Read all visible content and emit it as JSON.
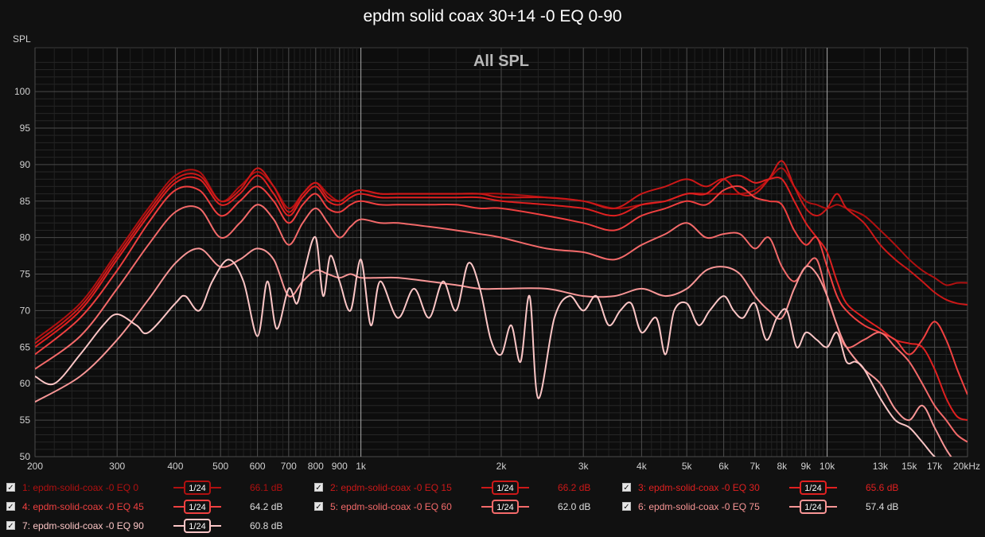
{
  "chart_data": {
    "type": "line",
    "title": "epdm solid coax 30+14 -0 EQ 0-90",
    "subtitle": "All SPL",
    "ylabel": "SPL",
    "xlabel": "",
    "x_scale": "log",
    "xlim": [
      200,
      20000
    ],
    "ylim": [
      50,
      106
    ],
    "x_ticks": [
      {
        "v": 200,
        "label": "200"
      },
      {
        "v": 300,
        "label": "300"
      },
      {
        "v": 400,
        "label": "400"
      },
      {
        "v": 500,
        "label": "500"
      },
      {
        "v": 600,
        "label": "600"
      },
      {
        "v": 700,
        "label": "700"
      },
      {
        "v": 800,
        "label": "800"
      },
      {
        "v": 900,
        "label": "900"
      },
      {
        "v": 1000,
        "label": "1k"
      },
      {
        "v": 2000,
        "label": "2k"
      },
      {
        "v": 3000,
        "label": "3k"
      },
      {
        "v": 4000,
        "label": "4k"
      },
      {
        "v": 5000,
        "label": "5k"
      },
      {
        "v": 6000,
        "label": "6k"
      },
      {
        "v": 7000,
        "label": "7k"
      },
      {
        "v": 8000,
        "label": "8k"
      },
      {
        "v": 9000,
        "label": "9k"
      },
      {
        "v": 10000,
        "label": "10k"
      },
      {
        "v": 13000,
        "label": "13k"
      },
      {
        "v": 15000,
        "label": "15k"
      },
      {
        "v": 17000,
        "label": "17k"
      },
      {
        "v": 20000,
        "label": "20kHz"
      }
    ],
    "y_ticks": [
      50,
      55,
      60,
      65,
      70,
      75,
      80,
      85,
      90,
      95,
      100
    ],
    "grid": true,
    "legend_position": "bottom",
    "series": [
      {
        "name": "1: epdm-solid-coax -0 EQ 0",
        "smoothing": "1/24",
        "value": "66.1 dB",
        "color": "#b01010",
        "x": [
          200,
          250,
          300,
          350,
          400,
          450,
          500,
          550,
          600,
          650,
          700,
          750,
          800,
          850,
          900,
          950,
          1000,
          1100,
          1200,
          1400,
          1600,
          1800,
          2000,
          2500,
          3000,
          3500,
          4000,
          4500,
          5000,
          5500,
          6000,
          6500,
          7000,
          7500,
          8000,
          8500,
          9000,
          9500,
          10000,
          10500,
          11000,
          12000,
          13000,
          14000,
          15000,
          16000,
          17000,
          18000,
          19000,
          20000
        ],
        "y": [
          66,
          71,
          78,
          84,
          88.5,
          89,
          85,
          87,
          89,
          87,
          84,
          86,
          87.5,
          86,
          85,
          86,
          86.5,
          86,
          86,
          86,
          86,
          86,
          86,
          85.5,
          85,
          84,
          84.5,
          85,
          86,
          86,
          86,
          86,
          86.5,
          88,
          89.5,
          87,
          85,
          84.5,
          84,
          84.5,
          84,
          83,
          81,
          79,
          77,
          75.5,
          74.5,
          73.5,
          73.8,
          73.8
        ]
      },
      {
        "name": "2: epdm-solid-coax -0 EQ 15",
        "smoothing": "1/24",
        "value": "66.2 dB",
        "color": "#cc1818",
        "x": [
          200,
          250,
          300,
          350,
          400,
          450,
          500,
          550,
          600,
          650,
          700,
          750,
          800,
          850,
          900,
          950,
          1000,
          1100,
          1200,
          1400,
          1600,
          1800,
          2000,
          2500,
          3000,
          3500,
          4000,
          4500,
          5000,
          5500,
          6000,
          6500,
          7000,
          7500,
          8000,
          8500,
          9000,
          9500,
          10000,
          10500,
          11000,
          12000,
          13000,
          14000,
          15000,
          16000,
          17000,
          18000,
          19000,
          20000
        ],
        "y": [
          65.5,
          70.5,
          77.5,
          83.5,
          88,
          88.5,
          85,
          86.5,
          89.5,
          87,
          83.5,
          86,
          87.5,
          85.5,
          85,
          86,
          86.5,
          86,
          86,
          86,
          86,
          86,
          85.5,
          85.5,
          85,
          84,
          86,
          87,
          88,
          87,
          88,
          86,
          86,
          88,
          90.5,
          87,
          84,
          83,
          84,
          86,
          84,
          82,
          79,
          77,
          75.5,
          74,
          72.5,
          71.5,
          71,
          70.8
        ]
      },
      {
        "name": "3: epdm-solid-coax -0 EQ 30",
        "smoothing": "1/24",
        "value": "65.6 dB",
        "color": "#e02020",
        "x": [
          200,
          250,
          300,
          350,
          400,
          450,
          500,
          550,
          600,
          650,
          700,
          750,
          800,
          850,
          900,
          950,
          1000,
          1100,
          1200,
          1400,
          1600,
          1800,
          2000,
          2500,
          3000,
          3500,
          4000,
          4500,
          5000,
          5500,
          6000,
          6500,
          7000,
          7500,
          8000,
          8500,
          9000,
          9500,
          10000,
          10500,
          11000,
          12000,
          13000,
          14000,
          15000,
          16000,
          17000,
          18000,
          19000,
          20000
        ],
        "y": [
          65,
          70,
          77,
          83,
          87.5,
          88,
          84.5,
          86,
          88.5,
          86,
          83,
          85.5,
          87,
          85,
          84.5,
          85.5,
          86,
          85.5,
          85.5,
          85.5,
          85.5,
          85.5,
          85,
          84.5,
          84,
          83,
          84.5,
          85,
          86,
          86,
          88,
          88.5,
          87.5,
          88,
          88,
          85,
          82,
          80,
          78,
          74,
          71,
          69,
          67.5,
          66,
          65.5,
          65,
          62,
          58,
          55.5,
          55
        ]
      },
      {
        "name": "4: epdm-solid-coax -0 EQ 45",
        "smoothing": "1/24",
        "value": "64.2 dB",
        "color": "#f04040",
        "x": [
          200,
          250,
          300,
          350,
          400,
          450,
          500,
          550,
          600,
          650,
          700,
          750,
          800,
          850,
          900,
          950,
          1000,
          1100,
          1200,
          1400,
          1600,
          1800,
          2000,
          2500,
          3000,
          3500,
          4000,
          4500,
          5000,
          5500,
          6000,
          6500,
          7000,
          7500,
          8000,
          8500,
          9000,
          9500,
          10000,
          10500,
          11000,
          12000,
          13000,
          14000,
          15000,
          16000,
          17000,
          18000,
          19000,
          20000
        ],
        "y": [
          64,
          69,
          75.5,
          82,
          86.5,
          86.5,
          83,
          85,
          87,
          85,
          82,
          84.5,
          86,
          84,
          83.5,
          84.5,
          85,
          84.5,
          84.5,
          84.5,
          84.5,
          84,
          84,
          83,
          82,
          81,
          83,
          84,
          85,
          84.5,
          86.5,
          87,
          85.5,
          85,
          84.5,
          81,
          79,
          80,
          76,
          72,
          70,
          68,
          67,
          66,
          64,
          66,
          68.5,
          66,
          62,
          58.5
        ]
      },
      {
        "name": "5: epdm-solid-coax -0 EQ 60",
        "smoothing": "1/24",
        "value": "62.0 dB",
        "color": "#f46a6a",
        "x": [
          200,
          250,
          300,
          350,
          400,
          450,
          500,
          550,
          600,
          650,
          700,
          750,
          800,
          850,
          900,
          950,
          1000,
          1100,
          1200,
          1400,
          1600,
          1800,
          2000,
          2500,
          3000,
          3500,
          4000,
          4500,
          5000,
          5500,
          6000,
          6500,
          7000,
          7500,
          8000,
          8500,
          9000,
          9500,
          10000,
          10500,
          11000,
          12000,
          13000,
          14000,
          15000,
          16000,
          17000,
          18000,
          19000,
          20000
        ],
        "y": [
          62,
          66.5,
          73,
          79,
          83.5,
          84,
          80,
          82,
          84.5,
          82.5,
          79,
          82,
          84,
          82,
          80,
          81.5,
          82.5,
          82,
          82,
          81.5,
          81,
          80.5,
          80,
          78.5,
          78,
          77,
          79,
          80.5,
          82,
          80,
          80.5,
          80.5,
          78.5,
          80,
          76,
          74,
          76,
          77,
          72,
          68,
          65,
          66,
          67,
          65,
          63,
          60,
          57,
          55,
          53,
          52
        ]
      },
      {
        "name": "6: epdm-solid-coax -0 EQ 75",
        "smoothing": "1/24",
        "value": "57.4 dB",
        "color": "#f89696",
        "x": [
          200,
          250,
          300,
          350,
          400,
          450,
          500,
          550,
          600,
          650,
          700,
          750,
          800,
          850,
          900,
          950,
          1000,
          1100,
          1200,
          1400,
          1600,
          1800,
          2000,
          2500,
          3000,
          3500,
          4000,
          4500,
          5000,
          5500,
          6000,
          6500,
          7000,
          7500,
          8000,
          8500,
          9000,
          9500,
          10000,
          10500,
          11000,
          12000,
          13000,
          14000,
          15000,
          16000,
          17000,
          18000,
          19000,
          20000
        ],
        "y": [
          57.5,
          61,
          66,
          71.5,
          76.5,
          78.5,
          76,
          77,
          78.5,
          77,
          72,
          74,
          75.5,
          75,
          74.5,
          75,
          74.5,
          74.5,
          74.5,
          74,
          73.5,
          73,
          73,
          73,
          72,
          72,
          73,
          72,
          73,
          75.5,
          76,
          75,
          72,
          70,
          69,
          73,
          76,
          75,
          72,
          68,
          65,
          62,
          60,
          56.5,
          55,
          57,
          54,
          51,
          49,
          48
        ]
      },
      {
        "name": "7: epdm-solid-coax -0 EQ 90",
        "smoothing": "1/24",
        "value": "60.8 dB",
        "color": "#fcc6c6",
        "x": [
          200,
          220,
          250,
          280,
          300,
          330,
          350,
          400,
          420,
          450,
          480,
          520,
          560,
          600,
          630,
          660,
          700,
          730,
          760,
          800,
          830,
          860,
          900,
          950,
          1000,
          1050,
          1100,
          1200,
          1300,
          1400,
          1500,
          1600,
          1700,
          1800,
          1900,
          2000,
          2100,
          2200,
          2300,
          2400,
          2600,
          2800,
          3000,
          3200,
          3400,
          3600,
          3800,
          4000,
          4300,
          4500,
          4700,
          5000,
          5300,
          5600,
          6000,
          6300,
          6600,
          7000,
          7400,
          7800,
          8200,
          8600,
          9000,
          9500,
          10000,
          10500,
          11000,
          11500,
          12000,
          13000,
          14000,
          15000,
          16000,
          17000,
          18000,
          19000,
          20000
        ],
        "y": [
          61,
          60,
          64,
          68,
          69.5,
          68,
          67,
          71,
          72,
          70,
          74,
          77,
          74,
          66.5,
          74,
          67.5,
          73,
          71,
          76,
          80,
          72,
          77.5,
          74,
          70,
          77,
          68,
          74,
          69,
          73,
          69,
          74,
          70,
          76.5,
          73,
          66,
          64,
          68,
          63,
          72,
          58,
          69,
          72,
          70,
          72,
          68,
          70,
          71,
          67,
          69,
          64,
          70,
          71,
          68,
          70,
          72,
          70,
          69,
          71,
          66,
          69,
          70,
          65,
          67,
          66,
          65,
          67,
          63,
          63,
          62,
          58,
          55,
          54,
          52,
          50,
          49,
          49,
          48
        ]
      }
    ]
  }
}
